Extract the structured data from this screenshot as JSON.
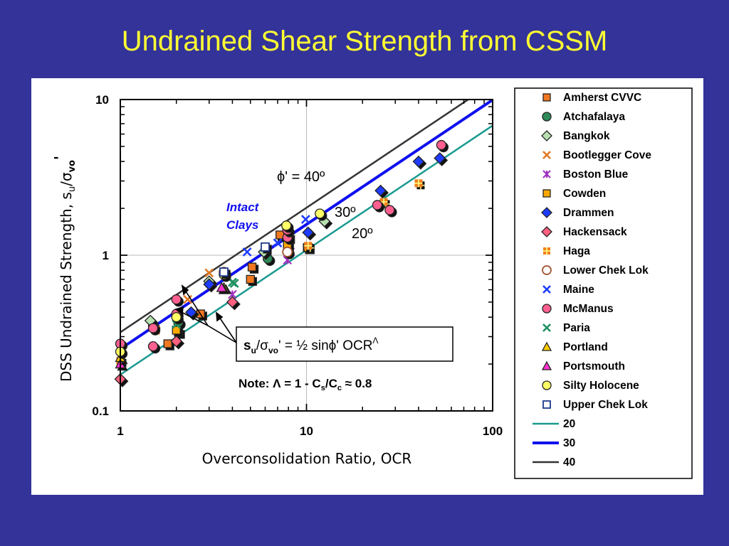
{
  "title": "Undrained Shear Strength from CSSM",
  "chart_data": {
    "type": "scatter",
    "xlabel": "Overconsolidation Ratio, OCR",
    "ylabel_main": "DSS Undrained Strength, s",
    "ylabel_sub": "u",
    "ylabel_slash": "/σ",
    "ylabel_sub2": "vo",
    "ylabel_prime": "'",
    "x_scale": "log",
    "y_scale": "log",
    "xlim": [
      1,
      100
    ],
    "ylim": [
      0.1,
      10
    ],
    "x_ticks": [
      "1",
      "10",
      "100"
    ],
    "y_ticks": [
      "0.1",
      "1",
      "10"
    ],
    "grid": true,
    "legend_position": "right",
    "series": [
      {
        "name": "Amherst CVVC",
        "marker": "square",
        "color": "#f07820",
        "points": [
          [
            1.8,
            0.27
          ],
          [
            2.05,
            0.32
          ],
          [
            2.7,
            0.42
          ],
          [
            5,
            0.7
          ],
          [
            5.1,
            0.84
          ],
          [
            7.2,
            1.35
          ],
          [
            8,
            1.3
          ],
          [
            10.1,
            1.12
          ]
        ]
      },
      {
        "name": "Atchafalaya",
        "marker": "circle",
        "color": "#2e8b57",
        "points": [
          [
            1.5,
            0.35
          ],
          [
            2.05,
            0.37
          ],
          [
            6.2,
            0.95
          ]
        ]
      },
      {
        "name": "Bangkok",
        "marker": "diamond",
        "color": "#b8e0b0",
        "points": [
          [
            1.45,
            0.38
          ],
          [
            3.0,
            0.68
          ],
          [
            5.9,
            1.05
          ],
          [
            12.5,
            1.65
          ]
        ]
      },
      {
        "name": "Bootlegger Cove",
        "marker": "x",
        "color": "#e07820",
        "points": [
          [
            1.55,
            0.33
          ],
          [
            3.0,
            0.77
          ],
          [
            2.3,
            0.52
          ]
        ]
      },
      {
        "name": "Boston Blue",
        "marker": "asterisk",
        "color": "#a030c0",
        "points": [
          [
            4.0,
            0.56
          ],
          [
            7.9,
            0.93
          ],
          [
            8.2,
            1.05
          ]
        ]
      },
      {
        "name": "Cowden",
        "marker": "square",
        "color": "#ffa800",
        "points": [
          [
            2.0,
            0.33
          ],
          [
            7.9,
            1.16
          ],
          [
            10.2,
            1.12
          ]
        ]
      },
      {
        "name": "Drammen",
        "marker": "diamond",
        "color": "#1e3cff",
        "points": [
          [
            2.4,
            0.43
          ],
          [
            3.0,
            0.65
          ],
          [
            10.2,
            1.4
          ],
          [
            25,
            2.6
          ],
          [
            40,
            4.0
          ],
          [
            52,
            4.2
          ]
        ]
      },
      {
        "name": "Hackensack",
        "marker": "diamond",
        "color": "#ff6080",
        "points": [
          [
            1.0,
            0.16
          ],
          [
            2.0,
            0.28
          ],
          [
            4.0,
            0.5
          ]
        ]
      },
      {
        "name": "Haga",
        "marker": "plus",
        "color": "#f08020",
        "points": [
          [
            1.0,
            0.21
          ],
          [
            10.2,
            1.15
          ],
          [
            26,
            2.2
          ],
          [
            40,
            2.9
          ]
        ]
      },
      {
        "name": "Lower Chek Lok",
        "marker": "circle-open",
        "color": "#a0522d",
        "points": [
          [
            3.6,
            0.78
          ],
          [
            7.9,
            1.05
          ]
        ]
      },
      {
        "name": "Maine",
        "marker": "x",
        "color": "#1e3cff",
        "points": [
          [
            4.8,
            1.05
          ],
          [
            7.0,
            1.2
          ],
          [
            9.9,
            1.7
          ],
          [
            1.0,
            0.26
          ]
        ]
      },
      {
        "name": "McManus",
        "marker": "circle",
        "color": "#ff6090",
        "points": [
          [
            1.0,
            0.27
          ],
          [
            1.5,
            0.34
          ],
          [
            1.5,
            0.26
          ],
          [
            2.0,
            0.52
          ],
          [
            2.0,
            0.42
          ],
          [
            7.9,
            1.3
          ],
          [
            7.9,
            1.45
          ],
          [
            24,
            2.1
          ],
          [
            28,
            1.95
          ],
          [
            53,
            5.1
          ]
        ]
      },
      {
        "name": "Paria",
        "marker": "x",
        "color": "#209060",
        "points": [
          [
            2.0,
            0.36
          ],
          [
            4.0,
            0.67
          ],
          [
            4.1,
            0.66
          ]
        ]
      },
      {
        "name": "Portland",
        "marker": "triangle",
        "color": "#ffcc00",
        "points": [
          [
            3.6,
            0.62
          ],
          [
            1.0,
            0.22
          ]
        ]
      },
      {
        "name": "Portsmouth",
        "marker": "triangle",
        "color": "#ff33cc",
        "points": [
          [
            1.0,
            0.2
          ],
          [
            3.5,
            0.62
          ]
        ]
      },
      {
        "name": "Silty Holocene",
        "marker": "circle",
        "color": "#ffff66",
        "points": [
          [
            1.0,
            0.24
          ],
          [
            2.0,
            0.4
          ],
          [
            3.6,
            0.75
          ],
          [
            7.8,
            1.55
          ],
          [
            11.8,
            1.85
          ]
        ]
      },
      {
        "name": "Upper Chek Lok",
        "marker": "square-open",
        "color": "#1e3c8a",
        "points": [
          [
            3.6,
            0.78
          ],
          [
            6.0,
            1.13
          ]
        ]
      }
    ],
    "lines": [
      {
        "name": "20",
        "color": "#1a9a90",
        "width": 2.5,
        "y_at_1": 0.171,
        "slope": 0.8
      },
      {
        "name": "30",
        "color": "#1010ee",
        "width": 4,
        "y_at_1": 0.25,
        "slope": 0.8
      },
      {
        "name": "40",
        "color": "#333333",
        "width": 2.5,
        "y_at_1": 0.32,
        "slope": 0.8
      }
    ],
    "annotations": {
      "phi40": "ϕ' = 40º",
      "phi30": "30º",
      "phi20": "20º",
      "intact_line1": "Intact",
      "intact_line2": "Clays",
      "formula": "s",
      "formula_sub1": "u",
      "formula_mid": "/σ",
      "formula_sub2": "vo",
      "formula_rest": "'  =  ½ sinϕ' OCR",
      "formula_sup": "Λ",
      "note": "Note:  Λ  = 1 - C",
      "note_sub1": "s",
      "note_mid": "/C",
      "note_sub2": "c",
      "note_rest": "  ≈  0.8"
    }
  }
}
